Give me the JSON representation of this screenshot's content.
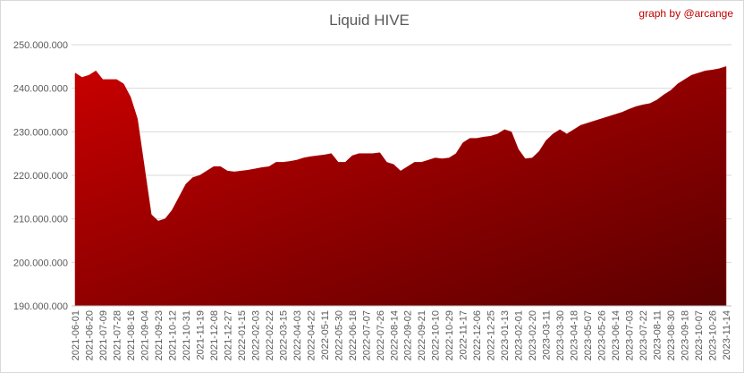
{
  "chart_data": {
    "type": "area",
    "title": "Liquid HIVE",
    "credit": "graph by @arcange",
    "categories": [
      "2021-06-01",
      null,
      "2021-06-20",
      null,
      "2021-07-09",
      null,
      "2021-07-28",
      null,
      "2021-08-16",
      null,
      "2021-09-04",
      null,
      "2021-09-23",
      null,
      "2021-10-12",
      null,
      "2021-10-31",
      null,
      "2021-11-19",
      null,
      "2021-12-08",
      null,
      "2021-12-27",
      null,
      "2022-01-15",
      null,
      "2022-02-03",
      null,
      "2022-02-22",
      null,
      "2022-03-15",
      null,
      "2022-04-03",
      null,
      "2022-04-22",
      null,
      "2022-05-11",
      null,
      "2022-05-30",
      null,
      "2022-06-18",
      null,
      "2022-07-07",
      null,
      "2022-07-26",
      null,
      "2022-08-14",
      null,
      "2022-09-02",
      null,
      "2022-09-21",
      null,
      "2022-10-10",
      null,
      "2022-10-29",
      null,
      "2022-11-17",
      null,
      "2022-12-06",
      null,
      "2022-12-25",
      null,
      "2023-01-13",
      null,
      "2023-02-01",
      null,
      "2023-02-20",
      null,
      "2023-03-11",
      null,
      "2023-03-30",
      null,
      "2023-04-18",
      null,
      "2023-05-07",
      null,
      "2023-05-26",
      null,
      "2023-06-14",
      null,
      "2023-07-03",
      null,
      "2023-07-22",
      null,
      "2023-08-11",
      null,
      "2023-08-30",
      null,
      "2023-09-18",
      null,
      "2023-10-07",
      null,
      "2023-10-26",
      null,
      "2023-11-14"
    ],
    "values": [
      243500000,
      242500000,
      243000000,
      244000000,
      242000000,
      242000000,
      242000000,
      241000000,
      238000000,
      233000000,
      222000000,
      211000000,
      209500000,
      210000000,
      212000000,
      215000000,
      218000000,
      219500000,
      220000000,
      221000000,
      222000000,
      222000000,
      221000000,
      220800000,
      221000000,
      221200000,
      221500000,
      221800000,
      222000000,
      223000000,
      223000000,
      223200000,
      223500000,
      224000000,
      224300000,
      224500000,
      224700000,
      225000000,
      223000000,
      223000000,
      224500000,
      225000000,
      225000000,
      225000000,
      225200000,
      223000000,
      222500000,
      221000000,
      222000000,
      223000000,
      223000000,
      223500000,
      224000000,
      223800000,
      224000000,
      225000000,
      227500000,
      228500000,
      228500000,
      228800000,
      229000000,
      229500000,
      230500000,
      230000000,
      226000000,
      223800000,
      224000000,
      225500000,
      228000000,
      229500000,
      230500000,
      229500000,
      230500000,
      231500000,
      232000000,
      232500000,
      233000000,
      233500000,
      234000000,
      234500000,
      235200000,
      235800000,
      236200000,
      236500000,
      237300000,
      238500000,
      239500000,
      241000000,
      242000000,
      243000000,
      243500000,
      244000000,
      244200000,
      244500000,
      245000000
    ],
    "color": "#b00000",
    "ylim": [
      190000000,
      250000000
    ],
    "yticks": [
      {
        "value": 190000000,
        "label": "190.000.000"
      },
      {
        "value": 200000000,
        "label": "200.000.000"
      },
      {
        "value": 210000000,
        "label": "210.000.000"
      },
      {
        "value": 220000000,
        "label": "220.000.000"
      },
      {
        "value": 230000000,
        "label": "230.000.000"
      },
      {
        "value": 240000000,
        "label": "240.000.000"
      },
      {
        "value": 250000000,
        "label": "250.000.000"
      }
    ],
    "grid": true
  }
}
